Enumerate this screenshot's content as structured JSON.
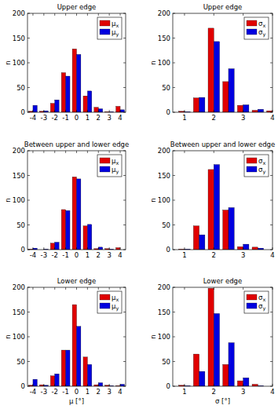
{
  "chart_data": [
    {
      "type": "bar",
      "title": "Upper edge",
      "y_label": "n",
      "x": [
        -4,
        -3,
        -2,
        -1,
        0,
        1,
        2,
        3,
        4
      ],
      "series": [
        {
          "name": "μx",
          "color": "#e00000",
          "values": [
            2,
            2,
            18,
            80,
            128,
            33,
            10,
            1,
            12
          ]
        },
        {
          "name": "μy",
          "color": "#0000e0",
          "values": [
            14,
            3,
            25,
            73,
            117,
            43,
            7,
            1,
            5
          ]
        }
      ],
      "xlim": [
        -4.5,
        4.5
      ],
      "xticks": [
        -4,
        -3,
        -2,
        -1,
        0,
        1,
        2,
        3,
        4
      ],
      "ylim": [
        0,
        200
      ],
      "yticks": [
        0,
        50,
        100,
        150,
        200
      ],
      "grid": false,
      "legend": "upper right"
    },
    {
      "type": "bar",
      "title": "Upper edge",
      "y_label": "n",
      "x": [
        1,
        1.5,
        2,
        2.5,
        3,
        3.5,
        4
      ],
      "series": [
        {
          "name": "σx",
          "color": "#e00000",
          "values": [
            2,
            29,
            170,
            62,
            14,
            4,
            3
          ]
        },
        {
          "name": "σy",
          "color": "#0000e0",
          "values": [
            1,
            30,
            143,
            88,
            15,
            6,
            0
          ]
        }
      ],
      "xlim": [
        0.6,
        4
      ],
      "xticks": [
        1,
        2,
        3,
        4
      ],
      "ylim": [
        0,
        200
      ],
      "yticks": [
        0,
        50,
        100,
        150,
        200
      ],
      "grid": false,
      "legend": "upper right"
    },
    {
      "type": "bar",
      "title": "Between upper and lower edge",
      "y_label": "n",
      "x": [
        -4,
        -3,
        -2,
        -1,
        0,
        1,
        2,
        3,
        4
      ],
      "series": [
        {
          "name": "μx",
          "color": "#e00000",
          "values": [
            1,
            0,
            13,
            81,
            147,
            48,
            2,
            2,
            4
          ]
        },
        {
          "name": "μy",
          "color": "#0000e0",
          "values": [
            3,
            1,
            15,
            79,
            143,
            51,
            5,
            1,
            0
          ]
        }
      ],
      "xlim": [
        -4.5,
        4.5
      ],
      "xticks": [
        -4,
        -3,
        -2,
        -1,
        0,
        1,
        2,
        3,
        4
      ],
      "ylim": [
        0,
        200
      ],
      "yticks": [
        0,
        50,
        100,
        150,
        200
      ],
      "grid": false,
      "legend": "upper right"
    },
    {
      "type": "bar",
      "title": "Between upper and lower edge",
      "y_label": "n",
      "x": [
        1,
        1.5,
        2,
        2.5,
        3,
        3.5,
        4
      ],
      "series": [
        {
          "name": "σx",
          "color": "#e00000",
          "values": [
            1,
            48,
            162,
            80,
            6,
            5,
            0
          ]
        },
        {
          "name": "σy",
          "color": "#0000e0",
          "values": [
            1,
            30,
            172,
            85,
            11,
            3,
            1
          ]
        }
      ],
      "xlim": [
        0.6,
        4
      ],
      "xticks": [
        1,
        2,
        3,
        4
      ],
      "ylim": [
        0,
        200
      ],
      "yticks": [
        0,
        50,
        100,
        150,
        200
      ],
      "grid": false,
      "legend": "upper right"
    },
    {
      "type": "bar",
      "title": "Lower edge",
      "y_label": "n",
      "x_label": "μ [°]",
      "x": [
        -4,
        -3,
        -2,
        -1,
        0,
        1,
        2,
        3,
        4
      ],
      "series": [
        {
          "name": "μx",
          "color": "#e00000",
          "values": [
            2,
            3,
            21,
            73,
            165,
            59,
            3,
            2,
            1
          ]
        },
        {
          "name": "μy",
          "color": "#0000e0",
          "values": [
            14,
            2,
            25,
            73,
            121,
            44,
            7,
            1,
            4
          ]
        }
      ],
      "xlim": [
        -4.5,
        4.5
      ],
      "xticks": [
        -4,
        -3,
        -2,
        -1,
        0,
        1,
        2,
        3,
        4
      ],
      "ylim": [
        0,
        200
      ],
      "yticks": [
        0,
        50,
        100,
        150,
        200
      ],
      "grid": false,
      "legend": "upper right"
    },
    {
      "type": "bar",
      "title": "Lower edge",
      "y_label": "n",
      "x_label": "σ [°]",
      "x": [
        1,
        1.5,
        2,
        2.5,
        3,
        3.5,
        4
      ],
      "series": [
        {
          "name": "σx",
          "color": "#e00000",
          "values": [
            2,
            65,
            198,
            44,
            11,
            4,
            0
          ]
        },
        {
          "name": "σy",
          "color": "#0000e0",
          "values": [
            1,
            30,
            147,
            88,
            17,
            1,
            0
          ]
        }
      ],
      "xlim": [
        0.6,
        4
      ],
      "xticks": [
        1,
        2,
        3,
        4
      ],
      "ylim": [
        0,
        200
      ],
      "yticks": [
        0,
        50,
        100,
        150,
        200
      ],
      "grid": false,
      "legend": "upper right"
    }
  ]
}
